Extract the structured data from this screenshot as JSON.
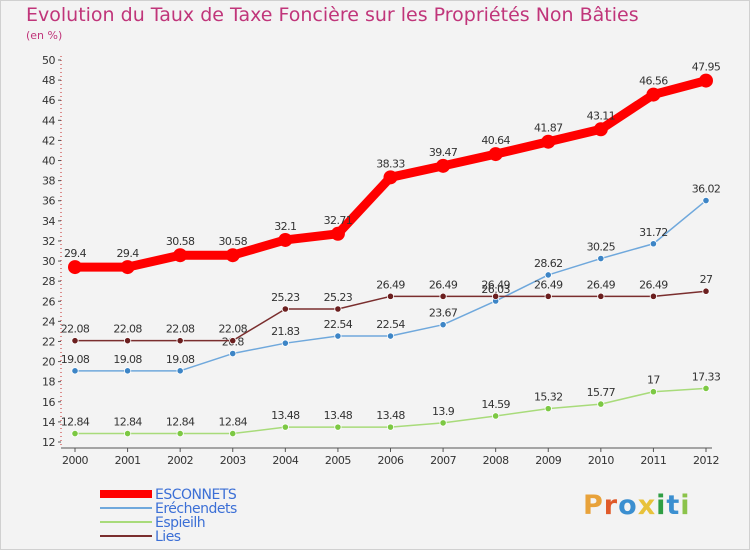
{
  "title": "Evolution du Taux de Taxe Foncière sur les Propriétés Non Bâties",
  "unit_label": "(en %)",
  "logo_text": "Proxiti",
  "logo_colors": [
    "#e8a23a",
    "#e05a2a",
    "#3b8fd0",
    "#e8c23a",
    "#2f9e44",
    "#3b8fd0",
    "#8bc34a"
  ],
  "chart_data": {
    "type": "line",
    "title": "Evolution du Taux de Taxe Foncière sur les Propriétés Non Bâties",
    "ylabel": "(en %)",
    "xlabel": "",
    "x": [
      "2000",
      "2001",
      "2002",
      "2003",
      "2004",
      "2005",
      "2006",
      "2007",
      "2008",
      "2009",
      "2010",
      "2011",
      "2012"
    ],
    "ylim": [
      12,
      50
    ],
    "ystep": 2,
    "grid": false,
    "legend_position": "bottom-left",
    "series": [
      {
        "name": "ESCONNETS",
        "color": "#ff0000",
        "values": [
          29.4,
          29.4,
          30.58,
          30.58,
          32.1,
          32.71,
          38.33,
          39.47,
          40.64,
          41.87,
          43.11,
          46.56,
          47.95
        ],
        "labels": [
          "29.4",
          "29.4",
          "30.58",
          "30.58",
          "32.1",
          "32.71",
          "38.33",
          "39.47",
          "40.64",
          "41.87",
          "43.11",
          "46.56",
          "47.95"
        ]
      },
      {
        "name": "Eréchendets",
        "color": "#6fa8dc",
        "marker": "#3d85c6",
        "values": [
          19.08,
          19.08,
          19.08,
          20.8,
          21.83,
          22.54,
          22.54,
          23.67,
          26.03,
          28.62,
          30.25,
          31.72,
          36.02
        ],
        "labels": [
          "19.08",
          "19.08",
          "19.08",
          "20.8",
          "21.83",
          "22.54",
          "22.54",
          "23.67",
          "26.03",
          "28.62",
          "30.25",
          "31.72",
          "36.02"
        ]
      },
      {
        "name": "Espieilh",
        "color": "#a8db7a",
        "marker": "#7cc843",
        "values": [
          12.84,
          12.84,
          12.84,
          12.84,
          13.48,
          13.48,
          13.48,
          13.9,
          14.59,
          15.32,
          15.77,
          17,
          17.33
        ],
        "labels": [
          "12.84",
          "12.84",
          "12.84",
          "12.84",
          "13.48",
          "13.48",
          "13.48",
          "13.9",
          "14.59",
          "15.32",
          "15.77",
          "17",
          "17.33"
        ]
      },
      {
        "name": "Lies",
        "color": "#7a2e2e",
        "marker": "#6b1f1f",
        "values": [
          22.08,
          22.08,
          22.08,
          22.08,
          25.23,
          25.23,
          26.49,
          26.49,
          26.49,
          26.49,
          26.49,
          26.49,
          27
        ],
        "labels": [
          "22.08",
          "22.08",
          "22.08",
          "22.08",
          "25.23",
          "25.23",
          "26.49",
          "26.49",
          "26.49",
          "26.49",
          "26.49",
          "26.49",
          "27"
        ]
      }
    ]
  }
}
